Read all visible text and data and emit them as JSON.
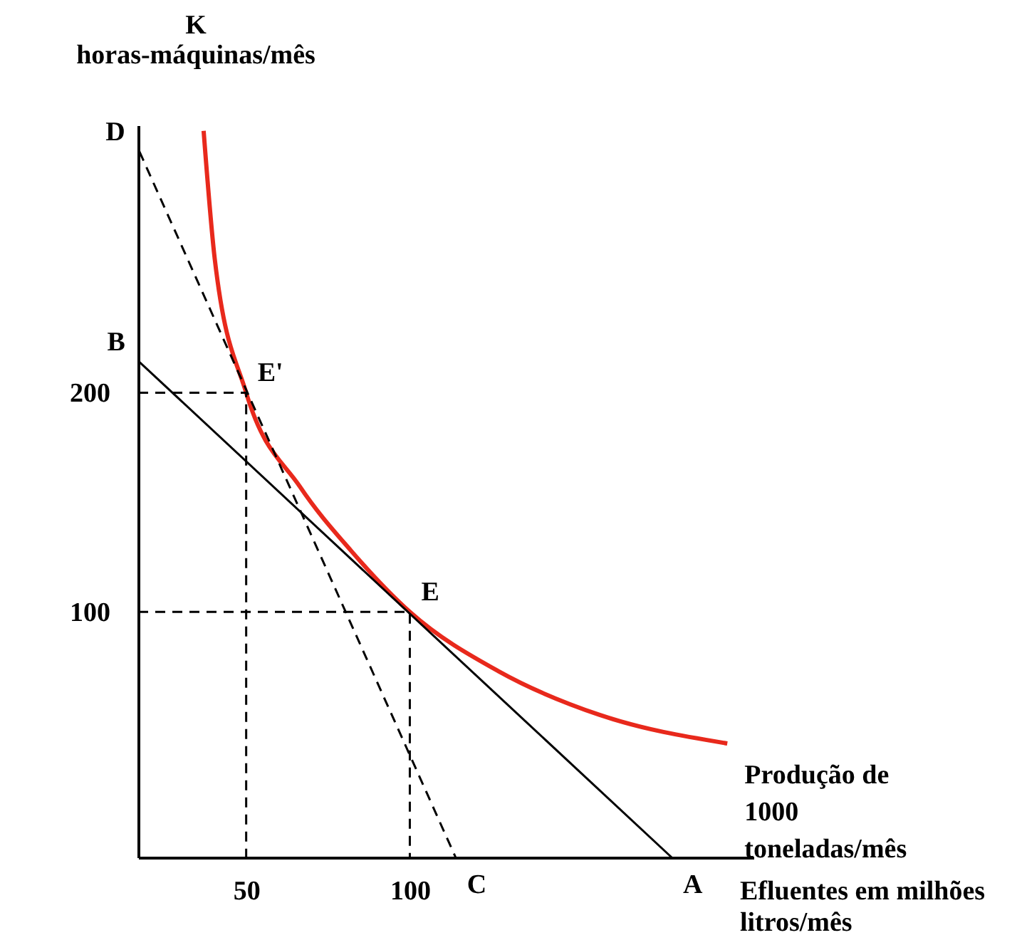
{
  "chart_data": {
    "type": "line",
    "xlabel": "Efluentes em milhões litros/mês",
    "ylabel": "K\nhoras-máquinas/mês",
    "xlim": [
      17,
      205
    ],
    "ylim": [
      -12,
      322
    ],
    "xticks": [
      50,
      100
    ],
    "yticks": [
      100,
      200
    ],
    "grid": false,
    "marker": "none",
    "series": [
      {
        "name": "Produção de 1000 toneladas/mês",
        "color": "#e8291c",
        "line_style": "solid",
        "x": [
          37,
          40.4,
          50,
          66.5,
          82,
          100,
          127,
          158,
          197
        ],
        "values": [
          319.5,
          261,
          200,
          157,
          128,
          100,
          73,
          53,
          40
        ]
      },
      {
        "color": "#000000",
        "line_style": "solid",
        "x": [
          17.4,
          180
        ],
        "values": [
          214,
          -12
        ]
      },
      {
        "color": "#000000",
        "line_style": "dashed",
        "x": [
          17.4,
          114
        ],
        "values": [
          310,
          -12
        ]
      },
      {
        "color": "#000000",
        "line_style": "dashed",
        "x": [
          17,
          50,
          50
        ],
        "values": [
          200,
          200,
          -12
        ]
      },
      {
        "color": "#000000",
        "line_style": "dashed",
        "x": [
          17,
          100,
          100
        ],
        "values": [
          100,
          100,
          -12
        ]
      }
    ],
    "annotations": [
      {
        "text": "D",
        "x": 17.4,
        "y": 310
      },
      {
        "text": "B",
        "x": 17.4,
        "y": 214
      },
      {
        "text": "E'",
        "x": 50,
        "y": 200
      },
      {
        "text": "E",
        "x": 100,
        "y": 100
      },
      {
        "text": "C",
        "x": 114,
        "y": -12
      },
      {
        "text": "A",
        "x": 180,
        "y": -12
      }
    ]
  }
}
